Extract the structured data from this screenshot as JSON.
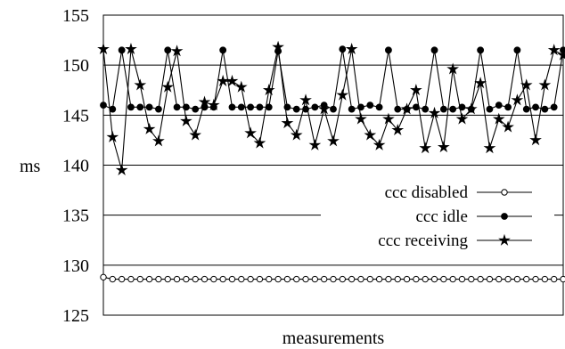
{
  "chart_data": {
    "type": "line",
    "title": "",
    "xlabel": "measurements",
    "ylabel": "ms",
    "ylim": [
      125,
      155
    ],
    "yticks": [
      125,
      130,
      135,
      140,
      145,
      150,
      155
    ],
    "ytick_labels": [
      "125",
      "130",
      "135",
      "140",
      "145",
      "150",
      "155"
    ],
    "xlim": [
      0,
      50
    ],
    "grid": "horizontal at y-ticks",
    "legend_position": "center-right",
    "x": [
      0,
      1,
      2,
      3,
      4,
      5,
      6,
      7,
      8,
      9,
      10,
      11,
      12,
      13,
      14,
      15,
      16,
      17,
      18,
      19,
      20,
      21,
      22,
      23,
      24,
      25,
      26,
      27,
      28,
      29,
      30,
      31,
      32,
      33,
      34,
      35,
      36,
      37,
      38,
      39,
      40,
      41,
      42,
      43,
      44,
      45,
      46,
      47,
      48,
      49,
      50
    ],
    "series": [
      {
        "name": "ccc disabled",
        "marker": "open-circle",
        "color": "#000000",
        "values": [
          128.8,
          128.6,
          128.6,
          128.6,
          128.6,
          128.6,
          128.6,
          128.6,
          128.6,
          128.6,
          128.6,
          128.6,
          128.6,
          128.6,
          128.6,
          128.6,
          128.6,
          128.6,
          128.6,
          128.6,
          128.6,
          128.6,
          128.6,
          128.6,
          128.6,
          128.6,
          128.6,
          128.6,
          128.6,
          128.6,
          128.6,
          128.6,
          128.6,
          128.6,
          128.6,
          128.6,
          128.6,
          128.6,
          128.6,
          128.6,
          128.6,
          128.6,
          128.6,
          128.6,
          128.6,
          128.6,
          128.6,
          128.6,
          128.6,
          128.6,
          128.6
        ]
      },
      {
        "name": "ccc idle",
        "marker": "filled-circle",
        "color": "#000000",
        "values": [
          146.0,
          145.6,
          151.5,
          145.8,
          145.8,
          145.8,
          145.6,
          151.5,
          145.8,
          145.8,
          145.6,
          145.8,
          145.8,
          151.5,
          145.8,
          145.8,
          145.8,
          145.8,
          145.8,
          151.4,
          145.8,
          145.6,
          145.6,
          145.8,
          146.0,
          145.6,
          151.6,
          145.6,
          145.8,
          146.0,
          145.8,
          151.5,
          145.6,
          145.6,
          145.8,
          145.6,
          151.5,
          145.6,
          145.6,
          145.8,
          145.6,
          151.5,
          145.6,
          146.0,
          145.8,
          151.5,
          145.6,
          145.8,
          145.6,
          145.8,
          151.5
        ]
      },
      {
        "name": "ccc receiving",
        "marker": "star",
        "color": "#000000",
        "values": [
          151.6,
          142.8,
          139.5,
          151.6,
          148.0,
          143.6,
          142.4,
          147.8,
          151.4,
          144.4,
          143.0,
          146.3,
          146.0,
          148.4,
          148.4,
          147.8,
          143.2,
          142.2,
          147.5,
          151.8,
          144.2,
          143.0,
          146.5,
          142.0,
          145.6,
          142.4,
          147.0,
          151.6,
          144.6,
          143.0,
          142.0,
          144.6,
          143.5,
          145.6,
          147.5,
          141.7,
          145.2,
          141.8,
          149.6,
          144.6,
          145.6,
          148.2,
          141.7,
          144.6,
          143.8,
          146.5,
          148.0,
          142.5,
          148.0,
          151.5,
          151.0
        ]
      }
    ]
  }
}
